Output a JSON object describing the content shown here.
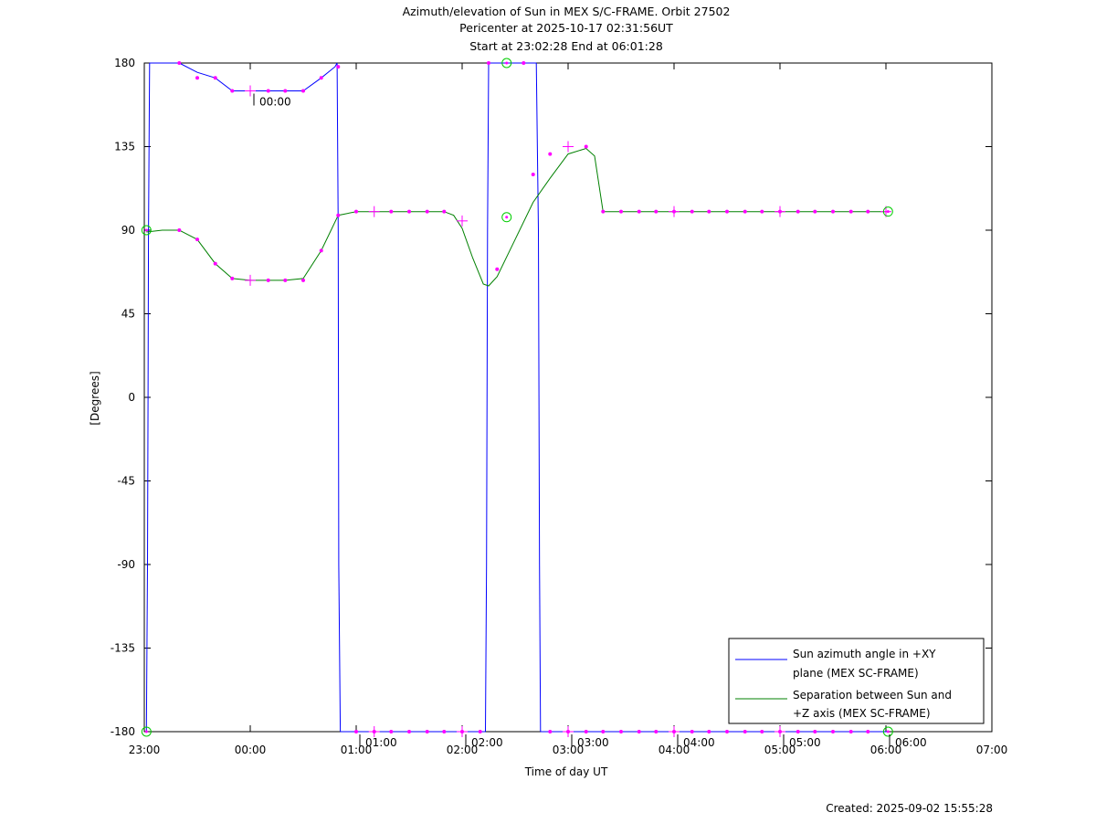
{
  "chart_data": {
    "type": "line",
    "title_lines": [
      "Azimuth/elevation of Sun in MEX S/C-FRAME.  Orbit 27502",
      "Pericenter at 2025-10-17 02:31:56UT",
      "Start at 23:02:28 End at 06:01:28"
    ],
    "xlabel": "Time of day UT",
    "ylabel": "[Degrees]",
    "xlim_hours": [
      23.0,
      31.0
    ],
    "ylim": [
      -180,
      180
    ],
    "x_tick_labels": [
      "23:00",
      "00:00",
      "01:00",
      "02:00",
      "03:00",
      "04:00",
      "05:00",
      "06:00",
      "07:00"
    ],
    "y_tick_labels": [
      "180",
      "135",
      "90",
      "45",
      "0",
      "-45",
      "-90",
      "-135",
      "-180"
    ],
    "time_annotations": [
      "00:00",
      "01:00",
      "02:00",
      "03:00",
      "04:00",
      "05:00",
      "06:00"
    ],
    "footer": "Created: 2025-09-02 15:55:28",
    "legend_position": "bottom-right",
    "colors": {
      "azimuth": "#0000ff",
      "separation": "#008000",
      "markers": "#ff00ff",
      "endpoints": "#00cc00"
    },
    "series": [
      {
        "key": "azimuth",
        "name": "Sun azimuth angle in +XY plane (MEX SC-FRAME)",
        "legend_lines": [
          "Sun azimuth angle in +XY",
          "plane (MEX SC-FRAME)"
        ],
        "segments": [
          [
            [
              23.02,
              -180
            ],
            [
              23.03,
              -90
            ],
            [
              23.035,
              0
            ],
            [
              23.04,
              90
            ],
            [
              23.05,
              180
            ]
          ],
          [
            [
              23.05,
              180
            ],
            [
              23.33,
              180
            ],
            [
              23.5,
              175
            ],
            [
              23.67,
              172
            ],
            [
              23.83,
              165
            ],
            [
              24.0,
              165
            ],
            [
              24.17,
              165
            ],
            [
              24.33,
              165
            ],
            [
              24.5,
              165
            ],
            [
              24.67,
              172
            ],
            [
              24.8,
              178
            ],
            [
              24.82,
              180
            ]
          ],
          [
            [
              24.82,
              180
            ],
            [
              24.83,
              90
            ],
            [
              24.835,
              -90
            ],
            [
              24.85,
              -180
            ]
          ],
          [
            [
              24.85,
              -180
            ],
            [
              26.22,
              -180
            ]
          ],
          [
            [
              26.22,
              -180
            ],
            [
              26.23,
              -90
            ],
            [
              26.24,
              90
            ],
            [
              26.25,
              180
            ]
          ],
          [
            [
              26.25,
              180
            ],
            [
              26.7,
              180
            ]
          ],
          [
            [
              26.7,
              180
            ],
            [
              26.72,
              90
            ],
            [
              26.725,
              0
            ],
            [
              26.73,
              -90
            ],
            [
              26.74,
              -180
            ]
          ],
          [
            [
              26.74,
              -180
            ],
            [
              30.02,
              -180
            ]
          ]
        ]
      },
      {
        "key": "separation",
        "name": "Separation between Sun and +Z axis (MEX SC-FRAME)",
        "legend_lines": [
          "Separation between Sun and",
          "+Z axis (MEX SC-FRAME)"
        ],
        "segments": [
          [
            [
              23.02,
              89
            ],
            [
              23.17,
              90
            ],
            [
              23.33,
              90
            ],
            [
              23.5,
              85
            ],
            [
              23.67,
              72
            ],
            [
              23.83,
              64
            ],
            [
              24.0,
              63
            ],
            [
              24.17,
              63
            ],
            [
              24.33,
              63
            ],
            [
              24.5,
              64
            ],
            [
              24.67,
              79
            ],
            [
              24.83,
              98
            ],
            [
              25.0,
              100
            ],
            [
              25.17,
              100
            ],
            [
              25.33,
              100
            ],
            [
              25.5,
              100
            ],
            [
              25.67,
              100
            ],
            [
              25.83,
              100
            ],
            [
              25.92,
              98
            ],
            [
              26.0,
              91
            ],
            [
              26.1,
              75
            ],
            [
              26.2,
              61
            ],
            [
              26.25,
              60
            ],
            [
              26.33,
              65
            ],
            [
              26.5,
              85
            ],
            [
              26.67,
              105
            ],
            [
              26.83,
              118
            ],
            [
              27.0,
              131
            ],
            [
              27.17,
              134
            ],
            [
              27.25,
              130
            ],
            [
              27.33,
              100
            ],
            [
              27.5,
              100
            ],
            [
              28.0,
              100
            ],
            [
              28.5,
              100
            ],
            [
              29.0,
              100
            ],
            [
              29.5,
              100
            ],
            [
              30.0,
              100
            ],
            [
              30.02,
              100
            ]
          ]
        ]
      }
    ],
    "markers": {
      "dots": [
        [
          23.33,
          180
        ],
        [
          23.5,
          172
        ],
        [
          23.67,
          172
        ],
        [
          23.83,
          165
        ],
        [
          24.17,
          165
        ],
        [
          24.33,
          165
        ],
        [
          24.5,
          165
        ],
        [
          24.67,
          172
        ],
        [
          24.83,
          178
        ],
        [
          26.25,
          180
        ],
        [
          26.58,
          180
        ],
        [
          23.33,
          90
        ],
        [
          23.5,
          85
        ],
        [
          23.67,
          72
        ],
        [
          23.83,
          64
        ],
        [
          24.17,
          63
        ],
        [
          24.33,
          63
        ],
        [
          24.5,
          63
        ],
        [
          24.67,
          79
        ],
        [
          24.83,
          98
        ],
        [
          25.0,
          100
        ],
        [
          25.33,
          100
        ],
        [
          25.5,
          100
        ],
        [
          25.67,
          100
        ],
        [
          25.83,
          100
        ],
        [
          26.33,
          69
        ],
        [
          26.67,
          120
        ],
        [
          26.83,
          131
        ],
        [
          27.17,
          135
        ],
        [
          27.33,
          100
        ],
        [
          27.5,
          100
        ],
        [
          27.67,
          100
        ],
        [
          27.83,
          100
        ],
        [
          28.0,
          100
        ],
        [
          28.17,
          100
        ],
        [
          28.33,
          100
        ],
        [
          28.5,
          100
        ],
        [
          28.67,
          100
        ],
        [
          28.83,
          100
        ],
        [
          29.0,
          100
        ],
        [
          29.17,
          100
        ],
        [
          29.33,
          100
        ],
        [
          29.5,
          100
        ],
        [
          29.67,
          100
        ],
        [
          29.83,
          100
        ],
        [
          25.0,
          -180
        ],
        [
          25.17,
          -180
        ],
        [
          25.33,
          -180
        ],
        [
          25.5,
          -180
        ],
        [
          25.67,
          -180
        ],
        [
          25.83,
          -180
        ],
        [
          26.0,
          -180
        ],
        [
          26.17,
          -180
        ],
        [
          26.83,
          -180
        ],
        [
          27.0,
          -180
        ],
        [
          27.17,
          -180
        ],
        [
          27.33,
          -180
        ],
        [
          27.5,
          -180
        ],
        [
          27.67,
          -180
        ],
        [
          27.83,
          -180
        ],
        [
          28.0,
          -180
        ],
        [
          28.17,
          -180
        ],
        [
          28.33,
          -180
        ],
        [
          28.5,
          -180
        ],
        [
          28.67,
          -180
        ],
        [
          28.83,
          -180
        ],
        [
          29.0,
          -180
        ],
        [
          29.17,
          -180
        ],
        [
          29.33,
          -180
        ],
        [
          29.5,
          -180
        ],
        [
          29.67,
          -180
        ],
        [
          29.83,
          -180
        ]
      ],
      "crosses": [
        [
          24.0,
          165
        ],
        [
          24.0,
          63
        ],
        [
          25.17,
          100
        ],
        [
          26.0,
          95
        ],
        [
          27.0,
          135
        ],
        [
          28.0,
          100
        ],
        [
          29.0,
          100
        ],
        [
          30.0,
          100
        ],
        [
          25.17,
          -180
        ],
        [
          26.0,
          -180
        ],
        [
          27.0,
          -180
        ],
        [
          28.0,
          -180
        ],
        [
          29.0,
          -180
        ]
      ],
      "circles": [
        [
          23.02,
          90
        ],
        [
          23.02,
          -180
        ],
        [
          26.42,
          180
        ],
        [
          26.42,
          97
        ],
        [
          30.02,
          100
        ],
        [
          30.02,
          -180
        ]
      ]
    },
    "annotations": [
      {
        "label": "00:00",
        "x": 24.0,
        "y": 165
      },
      {
        "label": "01:00",
        "x": 25.0,
        "y": -180
      },
      {
        "label": "02:00",
        "x": 26.0,
        "y": -180
      },
      {
        "label": "03:00",
        "x": 27.0,
        "y": -180
      },
      {
        "label": "04:00",
        "x": 28.0,
        "y": -180
      },
      {
        "label": "05:00",
        "x": 29.0,
        "y": -180
      },
      {
        "label": "06:00",
        "x": 30.0,
        "y": -180
      }
    ]
  }
}
